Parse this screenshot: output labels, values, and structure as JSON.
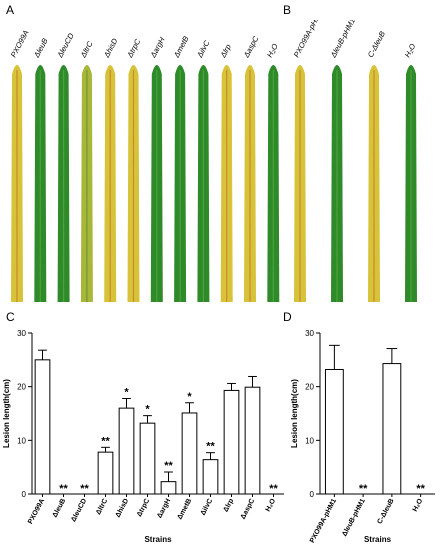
{
  "panels": {
    "a": "A",
    "b": "B",
    "c": "C",
    "d": "D"
  },
  "photo_a": {
    "labels": [
      "PXO99A",
      "ΔleuB",
      "ΔleuCD",
      "ΔltrC",
      "ΔhisD",
      "ΔtrpC",
      "ΔargH",
      "ΔmetB",
      "ΔilvC",
      "Δlrp",
      "ΔaspC",
      "H₂O"
    ],
    "leaf_colors": [
      "yellow",
      "green",
      "green",
      "yellow-green",
      "yellow",
      "yellow",
      "green",
      "green",
      "green",
      "yellow",
      "yellow",
      "green"
    ]
  },
  "photo_b": {
    "labels": [
      "PXO99A-pHM1",
      "ΔleuB-pHM1",
      "C-ΔleuB",
      "H₂O"
    ],
    "leaf_colors": [
      "yellow",
      "green",
      "yellow",
      "green"
    ]
  },
  "chart_data": [
    {
      "type": "bar",
      "panel": "C",
      "categories": [
        "PXO99A",
        "ΔleuB",
        "ΔleuCD",
        "ΔltrC",
        "ΔhisD",
        "ΔtrpC",
        "ΔargH",
        "ΔmetB",
        "ΔilvC",
        "Δlrp",
        "ΔaspC",
        "H₂O"
      ],
      "values": [
        25,
        0,
        0,
        7.8,
        16,
        13.2,
        2.3,
        15.1,
        6.4,
        19.3,
        19.9,
        0
      ],
      "errors": [
        1.8,
        0,
        0,
        0.9,
        1.8,
        1.4,
        1.8,
        1.9,
        1.3,
        1.3,
        2.0,
        0
      ],
      "significance": [
        "",
        "**",
        "**",
        "**",
        "*",
        "*",
        "**",
        "*",
        "**",
        "",
        "",
        "**"
      ],
      "xlabel": "Strains",
      "ylabel": "Lesion length(cm)",
      "ylim": [
        0,
        30
      ],
      "yticks": [
        "0",
        "10",
        "20",
        "30"
      ]
    },
    {
      "type": "bar",
      "panel": "D",
      "categories": [
        "PXO99A-pHM1",
        "ΔleuB-pHM1",
        "C-ΔleuB",
        "H₂O"
      ],
      "values": [
        23.2,
        0,
        24.3,
        0
      ],
      "errors": [
        4.5,
        0,
        2.8,
        0
      ],
      "significance": [
        "",
        "**",
        "",
        "**"
      ],
      "xlabel": "Strains",
      "ylabel": "Lesion length(cm)",
      "ylim": [
        0,
        30
      ],
      "yticks": [
        "0",
        "10",
        "20",
        "30"
      ]
    }
  ],
  "colors": {
    "bar_fill": "#ffffff",
    "axis": "#000000",
    "leaf_green": "#2f8a2a",
    "leaf_yellow": "#d7c33a"
  }
}
